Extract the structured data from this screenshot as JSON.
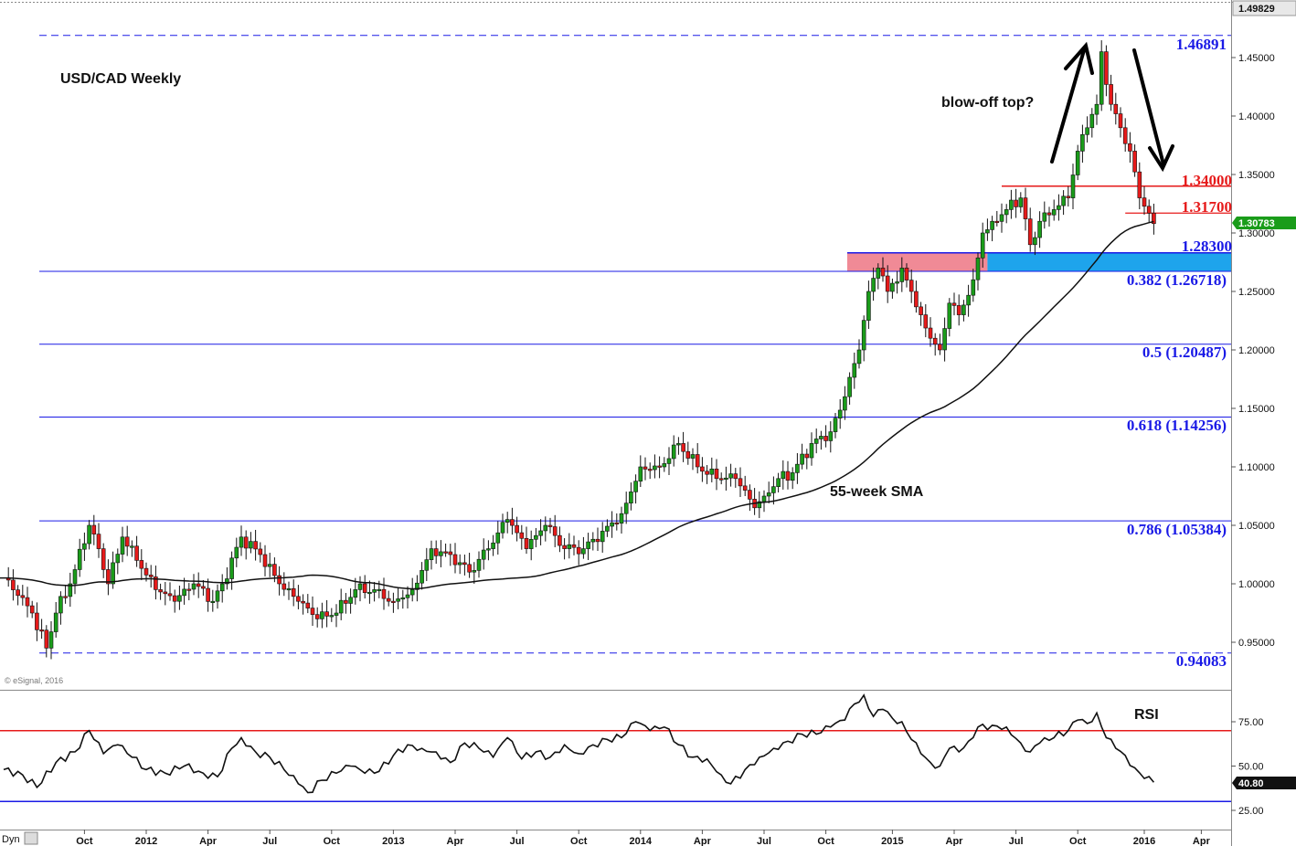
{
  "chart_data": [
    {
      "type": "candlestick",
      "title": "USD/CAD Weekly",
      "watermark": "© eSignal, 2016",
      "ylim": [
        0.915,
        1.4983
      ],
      "y_ticks": [
        "0.95000",
        "1.00000",
        "1.05000",
        "1.10000",
        "1.15000",
        "1.20000",
        "1.25000",
        "1.30000",
        "1.35000",
        "1.40000",
        "1.45000"
      ],
      "top_label": "1.49829",
      "current_price": {
        "label": "1.30783",
        "value": 1.30783,
        "color": "#1a9c1a"
      },
      "x_ticks": [
        "Oct",
        "2012",
        "Apr",
        "Jul",
        "Oct",
        "2013",
        "Apr",
        "Jul",
        "Oct",
        "2014",
        "Apr",
        "Jul",
        "Oct",
        "2015",
        "Apr",
        "Jul",
        "Oct",
        "2016",
        "Apr"
      ],
      "fib_levels": [
        {
          "label": "1.46891",
          "value": 1.46891,
          "style": "dashed",
          "color": "#1a1ae6"
        },
        {
          "label": "0.382 (1.26718)",
          "value": 1.26718,
          "style": "solid",
          "color": "#1a1ae6"
        },
        {
          "label": "0.5 (1.20487)",
          "value": 1.20487,
          "style": "solid",
          "color": "#1a1ae6"
        },
        {
          "label": "0.618 (1.14256)",
          "value": 1.14256,
          "style": "solid",
          "color": "#1a1ae6"
        },
        {
          "label": "0.786 (1.05384)",
          "value": 1.05384,
          "style": "solid",
          "color": "#1a1ae6"
        },
        {
          "label": "0.94083",
          "value": 0.94083,
          "style": "dashed",
          "color": "#1a1ae6"
        }
      ],
      "resistance_levels": [
        {
          "label": "1.34000",
          "value": 1.34,
          "color": "#e61a1a"
        },
        {
          "label": "1.31700",
          "value": 1.317,
          "color": "#e61a1a"
        }
      ],
      "support_zone": {
        "label": "1.28300",
        "top": 1.283,
        "bottom": 1.26718,
        "colors": [
          "#f08a96",
          "#1ea4ec"
        ]
      },
      "annotations": [
        "blow-off top?",
        "55-week SMA"
      ],
      "sma_name": "55-week SMA",
      "anchors": [
        [
          0,
          1.005
        ],
        [
          3,
          0.99
        ],
        [
          6,
          0.975
        ],
        [
          9,
          0.945
        ],
        [
          11,
          0.975
        ],
        [
          14,
          1.0
        ],
        [
          18,
          1.05
        ],
        [
          20,
          1.03
        ],
        [
          22,
          1.0
        ],
        [
          25,
          1.04
        ],
        [
          28,
          1.02
        ],
        [
          32,
          0.995
        ],
        [
          36,
          0.985
        ],
        [
          40,
          1.0
        ],
        [
          44,
          0.985
        ],
        [
          46,
          1.0
        ],
        [
          50,
          1.04
        ],
        [
          54,
          1.025
        ],
        [
          58,
          1.0
        ],
        [
          62,
          0.985
        ],
        [
          66,
          0.97
        ],
        [
          70,
          0.975
        ],
        [
          74,
          0.995
        ],
        [
          78,
          0.995
        ],
        [
          82,
          0.985
        ],
        [
          86,
          0.995
        ],
        [
          90,
          1.03
        ],
        [
          94,
          1.025
        ],
        [
          98,
          1.01
        ],
        [
          102,
          1.03
        ],
        [
          106,
          1.055
        ],
        [
          110,
          1.03
        ],
        [
          114,
          1.05
        ],
        [
          118,
          1.03
        ],
        [
          122,
          1.03
        ],
        [
          126,
          1.045
        ],
        [
          130,
          1.06
        ],
        [
          134,
          1.1
        ],
        [
          138,
          1.1
        ],
        [
          142,
          1.12
        ],
        [
          146,
          1.1
        ],
        [
          150,
          1.09
        ],
        [
          154,
          1.09
        ],
        [
          158,
          1.065
        ],
        [
          160,
          1.075
        ],
        [
          163,
          1.09
        ],
        [
          166,
          1.095
        ],
        [
          170,
          1.12
        ],
        [
          174,
          1.13
        ],
        [
          177,
          1.16
        ],
        [
          180,
          1.2
        ],
        [
          182,
          1.25
        ],
        [
          184,
          1.27
        ],
        [
          186,
          1.25
        ],
        [
          189,
          1.27
        ],
        [
          191,
          1.25
        ],
        [
          193,
          1.23
        ],
        [
          195,
          1.21
        ],
        [
          197,
          1.2
        ],
        [
          199,
          1.24
        ],
        [
          201,
          1.23
        ],
        [
          204,
          1.26
        ],
        [
          206,
          1.3
        ],
        [
          208,
          1.31
        ],
        [
          211,
          1.32
        ],
        [
          214,
          1.33
        ],
        [
          216,
          1.29
        ],
        [
          218,
          1.31
        ],
        [
          221,
          1.32
        ],
        [
          224,
          1.33
        ],
        [
          226,
          1.37
        ],
        [
          228,
          1.39
        ],
        [
          230,
          1.41
        ],
        [
          231,
          1.455
        ],
        [
          233,
          1.41
        ],
        [
          235,
          1.39
        ],
        [
          237,
          1.37
        ],
        [
          239,
          1.33
        ],
        [
          241,
          1.317
        ],
        [
          242,
          1.308
        ]
      ]
    },
    {
      "type": "line",
      "title": "RSI",
      "ylim": [
        15,
        95
      ],
      "y_ticks": [
        "25.00",
        "50.00",
        "75.00"
      ],
      "current_value": {
        "label": "40.80",
        "value": 40.8
      },
      "overbought": 70,
      "oversold": 30,
      "points": [
        [
          0,
          48
        ],
        [
          4,
          45
        ],
        [
          7,
          38
        ],
        [
          11,
          52
        ],
        [
          15,
          58
        ],
        [
          18,
          70
        ],
        [
          21,
          57
        ],
        [
          24,
          62
        ],
        [
          27,
          55
        ],
        [
          30,
          48
        ],
        [
          34,
          46
        ],
        [
          38,
          50
        ],
        [
          42,
          46
        ],
        [
          45,
          44
        ],
        [
          48,
          60
        ],
        [
          50,
          66
        ],
        [
          53,
          58
        ],
        [
          56,
          55
        ],
        [
          59,
          48
        ],
        [
          62,
          40
        ],
        [
          64,
          35
        ],
        [
          67,
          42
        ],
        [
          70,
          46
        ],
        [
          73,
          50
        ],
        [
          76,
          46
        ],
        [
          79,
          47
        ],
        [
          82,
          56
        ],
        [
          85,
          62
        ],
        [
          88,
          60
        ],
        [
          91,
          58
        ],
        [
          94,
          52
        ],
        [
          97,
          63
        ],
        [
          100,
          60
        ],
        [
          103,
          55
        ],
        [
          106,
          66
        ],
        [
          109,
          54
        ],
        [
          112,
          58
        ],
        [
          115,
          55
        ],
        [
          118,
          62
        ],
        [
          121,
          57
        ],
        [
          124,
          62
        ],
        [
          127,
          65
        ],
        [
          130,
          66
        ],
        [
          133,
          75
        ],
        [
          136,
          70
        ],
        [
          139,
          72
        ],
        [
          142,
          62
        ],
        [
          145,
          55
        ],
        [
          148,
          54
        ],
        [
          151,
          45
        ],
        [
          153,
          40
        ],
        [
          156,
          48
        ],
        [
          159,
          55
        ],
        [
          162,
          60
        ],
        [
          165,
          64
        ],
        [
          168,
          68
        ],
        [
          171,
          68
        ],
        [
          174,
          72
        ],
        [
          177,
          76
        ],
        [
          179,
          85
        ],
        [
          181,
          90
        ],
        [
          183,
          78
        ],
        [
          185,
          82
        ],
        [
          187,
          77
        ],
        [
          189,
          75
        ],
        [
          191,
          65
        ],
        [
          193,
          57
        ],
        [
          195,
          52
        ],
        [
          197,
          50
        ],
        [
          199,
          60
        ],
        [
          201,
          58
        ],
        [
          203,
          64
        ],
        [
          205,
          72
        ],
        [
          208,
          73
        ],
        [
          211,
          72
        ],
        [
          214,
          63
        ],
        [
          216,
          58
        ],
        [
          218,
          63
        ],
        [
          221,
          66
        ],
        [
          224,
          70
        ],
        [
          226,
          76
        ],
        [
          228,
          74
        ],
        [
          230,
          80
        ],
        [
          232,
          66
        ],
        [
          234,
          60
        ],
        [
          236,
          56
        ],
        [
          238,
          49
        ],
        [
          240,
          43
        ],
        [
          242,
          40.8
        ]
      ]
    }
  ]
}
